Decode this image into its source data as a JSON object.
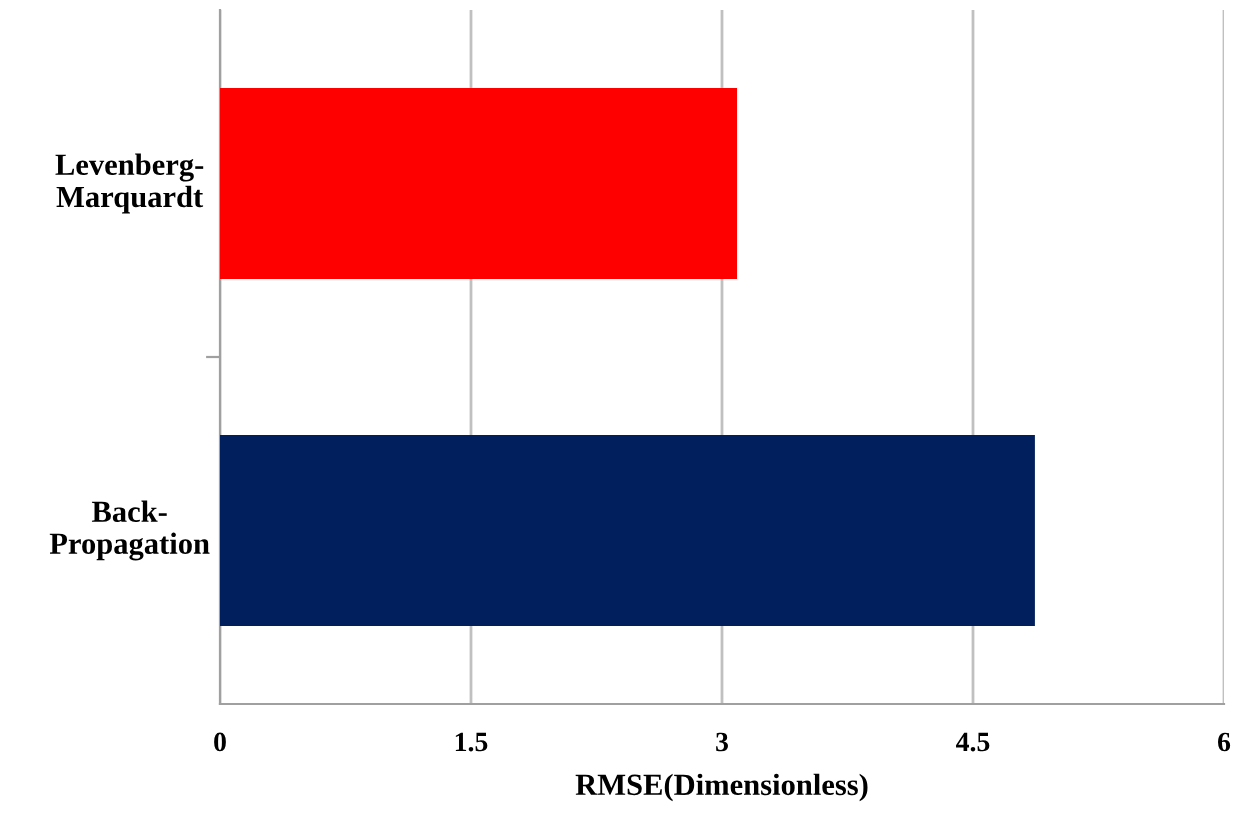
{
  "chart_data": {
    "type": "bar",
    "orientation": "horizontal",
    "xlabel": "RMSE(Dimensionless)",
    "categories": [
      "Levenberg-\nMarquardt",
      "Back-\nPropagation"
    ],
    "values": [
      3.09,
      4.87
    ],
    "colors": [
      "#ff0000",
      "#001f5c"
    ],
    "xlim": [
      0,
      6
    ],
    "xticks": [
      0,
      1.5,
      3,
      4.5,
      6
    ],
    "grid": "x"
  }
}
